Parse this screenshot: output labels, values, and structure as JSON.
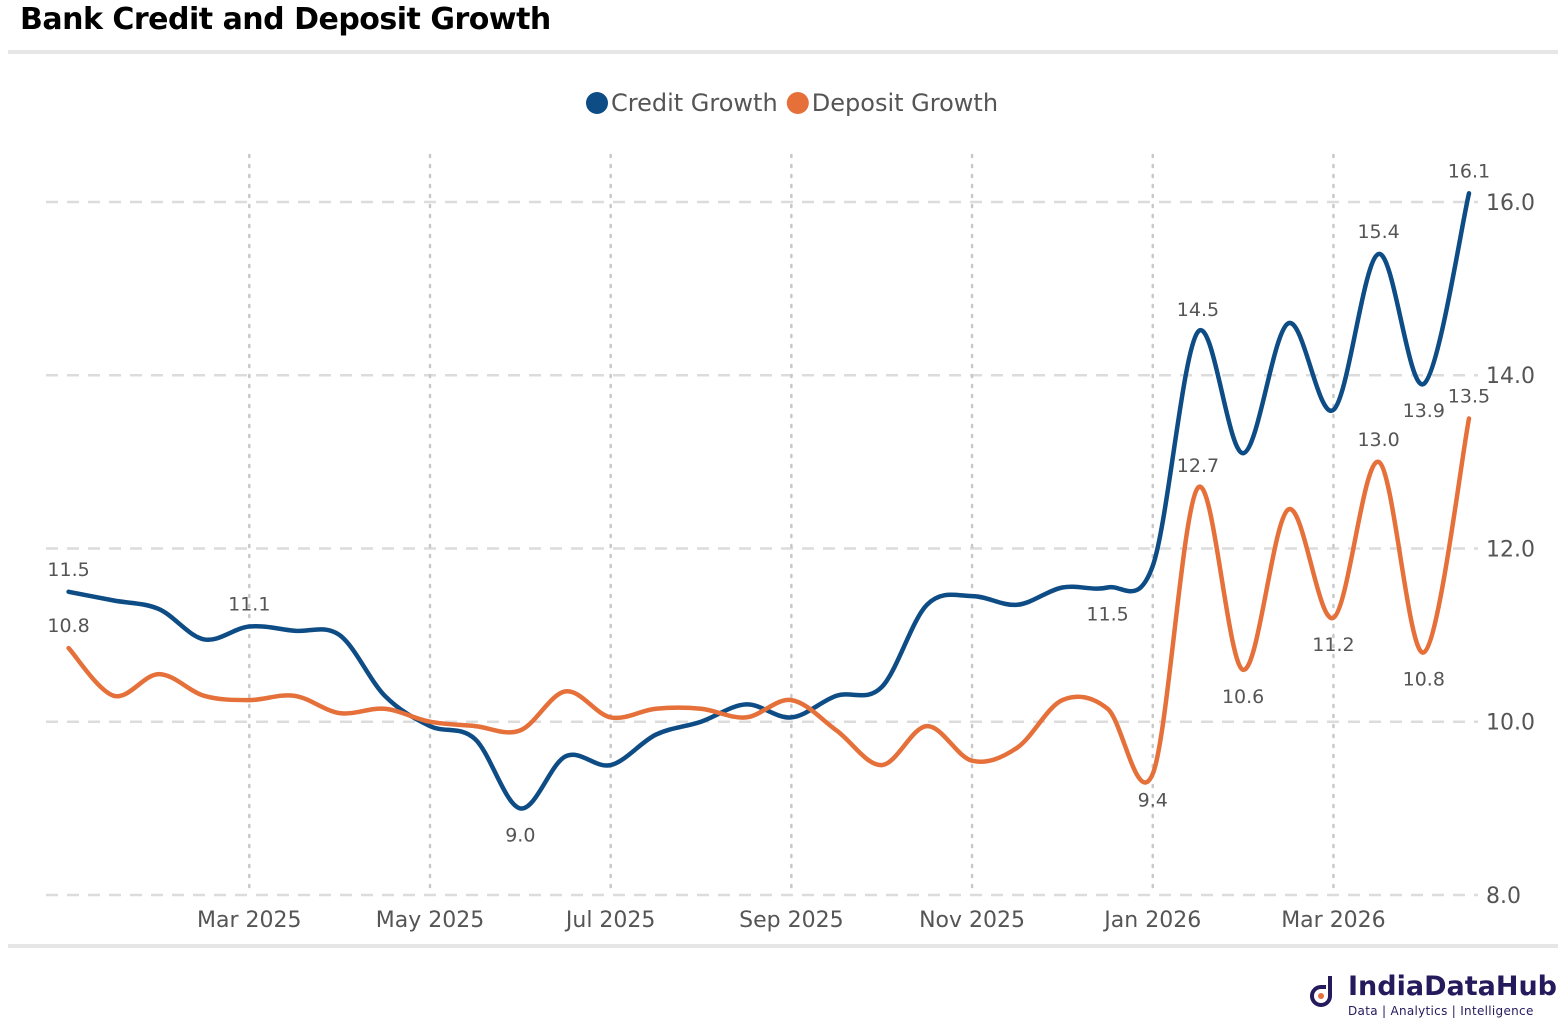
{
  "title": "Bank Credit and Deposit Growth",
  "legend": [
    {
      "name": "Credit Growth",
      "color": "#0e4c85"
    },
    {
      "name": "Deposit Growth",
      "color": "#e5703a"
    }
  ],
  "brand": {
    "name": "IndiaDataHub",
    "tagline": "Data | Analytics | Intelligence",
    "color": "#241a5c"
  },
  "chart_data": {
    "type": "line",
    "title": "Bank Credit and Deposit Growth",
    "xlabel": "",
    "ylabel": "",
    "ylim": [
      8.0,
      16.6
    ],
    "y_ticks": [
      8.0,
      10.0,
      12.0,
      14.0,
      16.0
    ],
    "y_tick_labels": [
      "8.0",
      "10.0",
      "12.0",
      "14.0",
      "16.0"
    ],
    "y_axis_position": "right",
    "x_tick_labels": [
      "Mar 2025",
      "May 2025",
      "Jul 2025",
      "Sep 2025",
      "Nov 2025",
      "Jan 2026",
      "Mar 2026"
    ],
    "x_tick_index": [
      4,
      8,
      12,
      16,
      20,
      24,
      28
    ],
    "x_range": [
      -0.5,
      31.2
    ],
    "grid": "horizontal dashed, vertical dotted",
    "series": [
      {
        "name": "Credit Growth",
        "color": "#0e4c85",
        "values": [
          11.5,
          11.4,
          11.3,
          10.95,
          11.1,
          11.05,
          11.0,
          10.3,
          9.95,
          9.8,
          9.0,
          9.6,
          9.5,
          9.85,
          10.0,
          10.2,
          10.05,
          10.3,
          10.4,
          11.35,
          11.45,
          11.35,
          11.55,
          11.55,
          11.8,
          14.5,
          13.1,
          14.6,
          13.6,
          15.4,
          13.9,
          16.1
        ],
        "labels": [
          {
            "index": 0,
            "text": "11.5",
            "pos": "above"
          },
          {
            "index": 4,
            "text": "11.1",
            "pos": "above"
          },
          {
            "index": 10,
            "text": "9.0",
            "pos": "below"
          },
          {
            "index": 23,
            "text": "11.5",
            "pos": "below"
          },
          {
            "index": 25,
            "text": "14.5",
            "pos": "above"
          },
          {
            "index": 29,
            "text": "15.4",
            "pos": "above"
          },
          {
            "index": 30,
            "text": "13.9",
            "pos": "below"
          },
          {
            "index": 31,
            "text": "16.1",
            "pos": "above"
          }
        ]
      },
      {
        "name": "Deposit Growth",
        "color": "#e5703a",
        "values": [
          10.85,
          10.3,
          10.55,
          10.3,
          10.25,
          10.3,
          10.1,
          10.15,
          10.0,
          9.95,
          9.9,
          10.35,
          10.05,
          10.15,
          10.15,
          10.05,
          10.25,
          9.9,
          9.5,
          9.95,
          9.55,
          9.7,
          10.25,
          10.15,
          9.4,
          12.7,
          10.6,
          12.45,
          11.2,
          13.0,
          10.8,
          13.5
        ],
        "labels": [
          {
            "index": 0,
            "text": "10.8",
            "pos": "above"
          },
          {
            "index": 24,
            "text": "9.4",
            "pos": "below"
          },
          {
            "index": 25,
            "text": "12.7",
            "pos": "above"
          },
          {
            "index": 26,
            "text": "10.6",
            "pos": "below"
          },
          {
            "index": 28,
            "text": "11.2",
            "pos": "below"
          },
          {
            "index": 29,
            "text": "13.0",
            "pos": "above"
          },
          {
            "index": 30,
            "text": "10.8",
            "pos": "below"
          },
          {
            "index": 31,
            "text": "13.5",
            "pos": "above"
          }
        ]
      }
    ]
  }
}
